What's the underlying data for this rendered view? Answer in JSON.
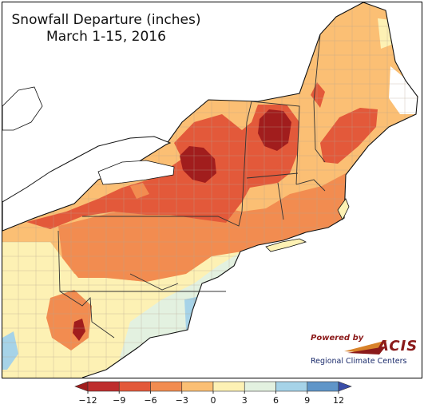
{
  "title": {
    "line1": "Snowfall Departure (inches)",
    "line2": "March 1-15, 2016"
  },
  "logo": {
    "powered_by": "Powered by",
    "acis": "ACIS",
    "regional": "Regional Climate Centers"
  },
  "legend": {
    "units": "inches",
    "bins": [
      {
        "from": -12,
        "to": -9,
        "color": "#be2d2d"
      },
      {
        "from": -9,
        "to": -6,
        "color": "#e3593a"
      },
      {
        "from": -6,
        "to": -3,
        "color": "#f28c50"
      },
      {
        "from": -3,
        "to": 0,
        "color": "#fbbf74"
      },
      {
        "from": 0,
        "to": 3,
        "color": "#fdf1b4"
      },
      {
        "from": 3,
        "to": 6,
        "color": "#e3f1e0"
      },
      {
        "from": 6,
        "to": 9,
        "color": "#a6d3e8"
      },
      {
        "from": 9,
        "to": 12,
        "color": "#5f95c8"
      }
    ],
    "under_color": "#a11d1d",
    "over_color": "#3a4da8",
    "ticks": [
      "−12",
      "−9",
      "−6",
      "−3",
      "0",
      "3",
      "6",
      "9",
      "12"
    ]
  },
  "map": {
    "region": "Northeast United States",
    "colors": {
      "background": "#ffffff",
      "border": "#333333",
      "county": "#b5a592",
      "deep_red": "#a11d1d"
    }
  }
}
